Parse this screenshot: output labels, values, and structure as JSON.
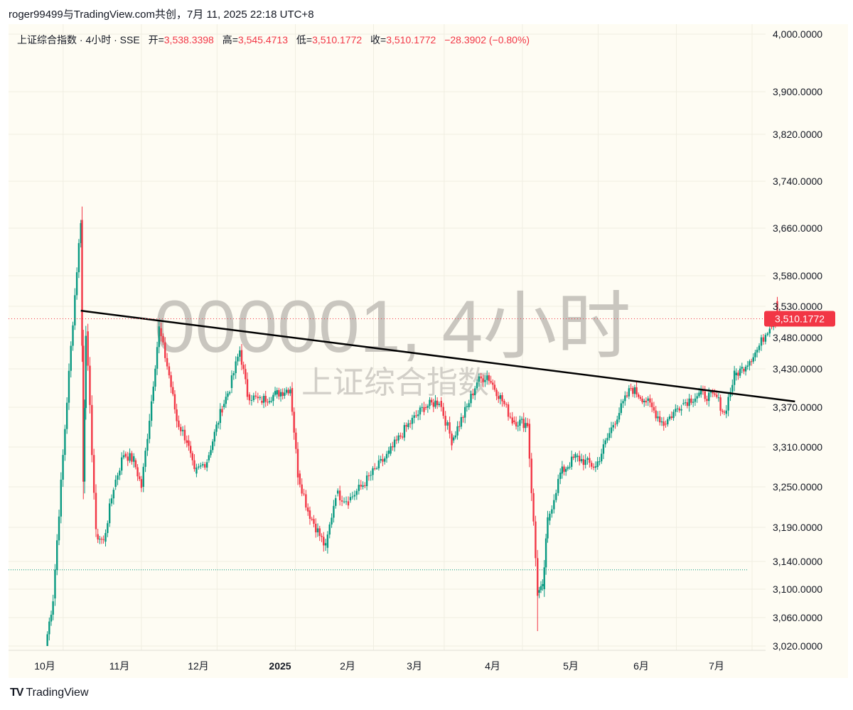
{
  "header": {
    "text": "roger99499与TradingView.com共创，7月 11, 2025 22:18 UTC+8"
  },
  "legend": {
    "symbol": "上证综合指数 · 4小时 · SSE",
    "open_label": "开=",
    "open": "3,538.3398",
    "high_label": "高=",
    "high": "3,545.4713",
    "low_label": "低=",
    "low": "3,510.1772",
    "close_label": "收=",
    "close": "3,510.1772",
    "change": "−28.3902 (−0.80%)"
  },
  "watermark": {
    "main": "000001, 4小时",
    "sub": "上证综合指数"
  },
  "footer": {
    "brand": "TradingView",
    "logo": "TV"
  },
  "colors": {
    "up": "#089981",
    "down": "#f23645",
    "trendline": "#000000",
    "background": "#fefcf3",
    "price_tag": "#f23645"
  },
  "chart_data": {
    "type": "candlestick",
    "interval": "4小时",
    "y_ticks": [
      "4,000.0000",
      "3,900.0000",
      "3,820.0000",
      "3,740.0000",
      "3,660.0000",
      "3,580.0000",
      "3,530.0000",
      "3,480.0000",
      "3,430.0000",
      "3,370.0000",
      "3,310.0000",
      "3,250.0000",
      "3,190.0000",
      "3,140.0000",
      "3,100.0000",
      "3,060.0000",
      "3,020.0000"
    ],
    "x_ticks": [
      {
        "label": "10月",
        "bold": false
      },
      {
        "label": "11月",
        "bold": false
      },
      {
        "label": "12月",
        "bold": false
      },
      {
        "label": "2025",
        "bold": true
      },
      {
        "label": "2月",
        "bold": false
      },
      {
        "label": "3月",
        "bold": false
      },
      {
        "label": "4月",
        "bold": false
      },
      {
        "label": "5月",
        "bold": false
      },
      {
        "label": "6月",
        "bold": false
      },
      {
        "label": "7月",
        "bold": false
      }
    ],
    "last_price": "3,510.1772",
    "last_price_value": 3510.18,
    "dotted_level": 3128,
    "trendline": {
      "start": {
        "date": "2024-10-08",
        "value": 3523
      },
      "end": {
        "date": "2025-07-18",
        "value": 3379
      }
    },
    "path": [
      {
        "date": "2024-09-24",
        "value": 3020
      },
      {
        "date": "2024-09-27",
        "value": 3087
      },
      {
        "date": "2024-10-08",
        "value": 3674
      },
      {
        "date": "2024-10-09",
        "value": 3258
      },
      {
        "date": "2024-10-10",
        "value": 3490
      },
      {
        "date": "2024-10-14",
        "value": 3180
      },
      {
        "date": "2024-10-17",
        "value": 3169
      },
      {
        "date": "2024-10-21",
        "value": 3250
      },
      {
        "date": "2024-10-25",
        "value": 3300
      },
      {
        "date": "2024-10-29",
        "value": 3290
      },
      {
        "date": "2024-11-01",
        "value": 3250
      },
      {
        "date": "2024-11-05",
        "value": 3380
      },
      {
        "date": "2024-11-08",
        "value": 3495
      },
      {
        "date": "2024-11-12",
        "value": 3420
      },
      {
        "date": "2024-11-15",
        "value": 3350
      },
      {
        "date": "2024-11-19",
        "value": 3320
      },
      {
        "date": "2024-11-22",
        "value": 3270
      },
      {
        "date": "2024-11-27",
        "value": 3290
      },
      {
        "date": "2024-12-03",
        "value": 3370
      },
      {
        "date": "2024-12-06",
        "value": 3400
      },
      {
        "date": "2024-12-10",
        "value": 3460
      },
      {
        "date": "2024-12-13",
        "value": 3390
      },
      {
        "date": "2024-12-18",
        "value": 3380
      },
      {
        "date": "2024-12-24",
        "value": 3390
      },
      {
        "date": "2024-12-30",
        "value": 3400
      },
      {
        "date": "2025-01-02",
        "value": 3270
      },
      {
        "date": "2025-01-06",
        "value": 3215
      },
      {
        "date": "2025-01-13",
        "value": 3160
      },
      {
        "date": "2025-01-17",
        "value": 3240
      },
      {
        "date": "2025-01-22",
        "value": 3230
      },
      {
        "date": "2025-01-27",
        "value": 3250
      },
      {
        "date": "2025-02-07",
        "value": 3300
      },
      {
        "date": "2025-02-14",
        "value": 3340
      },
      {
        "date": "2025-02-21",
        "value": 3370
      },
      {
        "date": "2025-02-27",
        "value": 3380
      },
      {
        "date": "2025-03-04",
        "value": 3320
      },
      {
        "date": "2025-03-10",
        "value": 3370
      },
      {
        "date": "2025-03-14",
        "value": 3410
      },
      {
        "date": "2025-03-18",
        "value": 3420
      },
      {
        "date": "2025-03-24",
        "value": 3380
      },
      {
        "date": "2025-03-28",
        "value": 3350
      },
      {
        "date": "2025-04-03",
        "value": 3345
      },
      {
        "date": "2025-04-07",
        "value": 3095
      },
      {
        "date": "2025-04-09",
        "value": 3100
      },
      {
        "date": "2025-04-11",
        "value": 3200
      },
      {
        "date": "2025-04-16",
        "value": 3270
      },
      {
        "date": "2025-04-22",
        "value": 3295
      },
      {
        "date": "2025-04-30",
        "value": 3280
      },
      {
        "date": "2025-05-07",
        "value": 3345
      },
      {
        "date": "2025-05-14",
        "value": 3400
      },
      {
        "date": "2025-05-20",
        "value": 3380
      },
      {
        "date": "2025-05-27",
        "value": 3345
      },
      {
        "date": "2025-06-03",
        "value": 3375
      },
      {
        "date": "2025-06-10",
        "value": 3390
      },
      {
        "date": "2025-06-17",
        "value": 3385
      },
      {
        "date": "2025-06-20",
        "value": 3360
      },
      {
        "date": "2025-06-24",
        "value": 3420
      },
      {
        "date": "2025-06-27",
        "value": 3430
      },
      {
        "date": "2025-07-03",
        "value": 3460
      },
      {
        "date": "2025-07-08",
        "value": 3500
      },
      {
        "date": "2025-07-11",
        "value": 3510
      }
    ]
  }
}
